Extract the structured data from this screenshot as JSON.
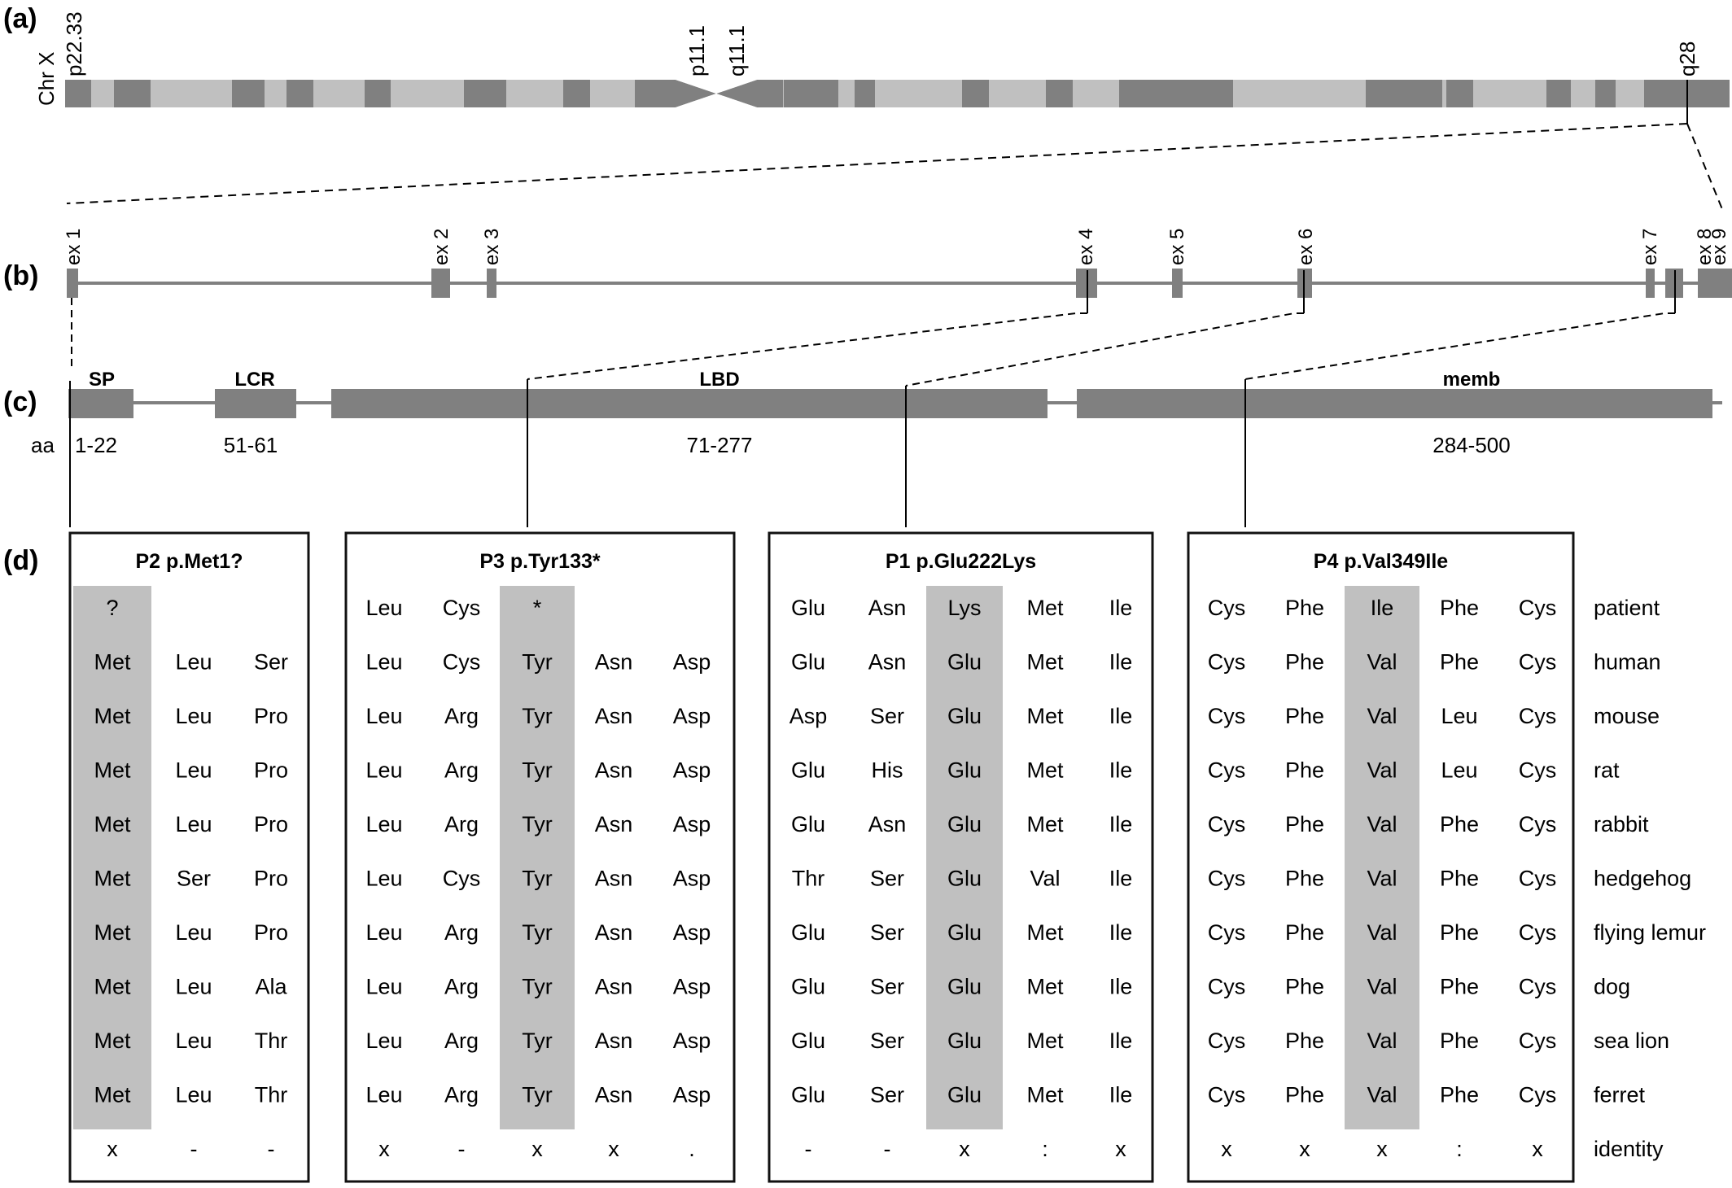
{
  "panels": {
    "a": "(a)",
    "b": "(b)",
    "c": "(c)",
    "d": "(d)"
  },
  "chromosome": {
    "label": "Chr X",
    "band_labels": {
      "p22_33": "p22.33",
      "p11_1": "p11.1",
      "q11_1": "q11.1",
      "q28": "q28"
    },
    "colors": {
      "dark": "#808080",
      "light": "#c0c0c0"
    }
  },
  "gene": {
    "exons": [
      "ex 1",
      "ex 2",
      "ex 3",
      "ex 4",
      "ex 5",
      "ex 6",
      "ex 7",
      "ex 8",
      "ex 9"
    ]
  },
  "protein": {
    "aa_label": "aa",
    "domains": [
      {
        "name": "SP",
        "range": "1-22"
      },
      {
        "name": "LCR",
        "range": "51-61"
      },
      {
        "name": "LBD",
        "range": "71-277"
      },
      {
        "name": "memb",
        "range": "284-500"
      }
    ]
  },
  "alignment": {
    "species": [
      "patient",
      "human",
      "mouse",
      "rat",
      "rabbit",
      "hedgehog",
      "flying lemur",
      "dog",
      "sea lion",
      "ferret",
      "identity"
    ],
    "highlight_color": "#c0c0c0",
    "boxes": [
      {
        "title": "P2 p.Met1?",
        "rows": [
          [
            "?",
            "",
            ""
          ],
          [
            "Met",
            "Leu",
            "Ser"
          ],
          [
            "Met",
            "Leu",
            "Pro"
          ],
          [
            "Met",
            "Leu",
            "Pro"
          ],
          [
            "Met",
            "Leu",
            "Pro"
          ],
          [
            "Met",
            "Ser",
            "Pro"
          ],
          [
            "Met",
            "Leu",
            "Pro"
          ],
          [
            "Met",
            "Leu",
            "Ala"
          ],
          [
            "Met",
            "Leu",
            "Thr"
          ],
          [
            "Met",
            "Leu",
            "Thr"
          ],
          [
            "x",
            "-",
            "-"
          ]
        ]
      },
      {
        "title": "P3 p.Tyr133*",
        "rows": [
          [
            "Leu",
            "Cys",
            "*",
            "",
            ""
          ],
          [
            "Leu",
            "Cys",
            "Tyr",
            "Asn",
            "Asp"
          ],
          [
            "Leu",
            "Arg",
            "Tyr",
            "Asn",
            "Asp"
          ],
          [
            "Leu",
            "Arg",
            "Tyr",
            "Asn",
            "Asp"
          ],
          [
            "Leu",
            "Arg",
            "Tyr",
            "Asn",
            "Asp"
          ],
          [
            "Leu",
            "Cys",
            "Tyr",
            "Asn",
            "Asp"
          ],
          [
            "Leu",
            "Arg",
            "Tyr",
            "Asn",
            "Asp"
          ],
          [
            "Leu",
            "Arg",
            "Tyr",
            "Asn",
            "Asp"
          ],
          [
            "Leu",
            "Arg",
            "Tyr",
            "Asn",
            "Asp"
          ],
          [
            "Leu",
            "Arg",
            "Tyr",
            "Asn",
            "Asp"
          ],
          [
            "x",
            "-",
            "x",
            "x",
            "."
          ]
        ]
      },
      {
        "title": "P1 p.Glu222Lys",
        "rows": [
          [
            "Glu",
            "Asn",
            "Lys",
            "Met",
            "Ile"
          ],
          [
            "Glu",
            "Asn",
            "Glu",
            "Met",
            "Ile"
          ],
          [
            "Asp",
            "Ser",
            "Glu",
            "Met",
            "Ile"
          ],
          [
            "Glu",
            "His",
            "Glu",
            "Met",
            "Ile"
          ],
          [
            "Glu",
            "Asn",
            "Glu",
            "Met",
            "Ile"
          ],
          [
            "Thr",
            "Ser",
            "Glu",
            "Val",
            "Ile"
          ],
          [
            "Glu",
            "Ser",
            "Glu",
            "Met",
            "Ile"
          ],
          [
            "Glu",
            "Ser",
            "Glu",
            "Met",
            "Ile"
          ],
          [
            "Glu",
            "Ser",
            "Glu",
            "Met",
            "Ile"
          ],
          [
            "Glu",
            "Ser",
            "Glu",
            "Met",
            "Ile"
          ],
          [
            "-",
            "-",
            "x",
            ":",
            "x"
          ]
        ]
      },
      {
        "title": "P4 p.Val349Ile",
        "rows": [
          [
            "Cys",
            "Phe",
            "Ile",
            "Phe",
            "Cys"
          ],
          [
            "Cys",
            "Phe",
            "Val",
            "Phe",
            "Cys"
          ],
          [
            "Cys",
            "Phe",
            "Val",
            "Leu",
            "Cys"
          ],
          [
            "Cys",
            "Phe",
            "Val",
            "Leu",
            "Cys"
          ],
          [
            "Cys",
            "Phe",
            "Val",
            "Phe",
            "Cys"
          ],
          [
            "Cys",
            "Phe",
            "Val",
            "Phe",
            "Cys"
          ],
          [
            "Cys",
            "Phe",
            "Val",
            "Phe",
            "Cys"
          ],
          [
            "Cys",
            "Phe",
            "Val",
            "Phe",
            "Cys"
          ],
          [
            "Cys",
            "Phe",
            "Val",
            "Phe",
            "Cys"
          ],
          [
            "Cys",
            "Phe",
            "Val",
            "Phe",
            "Cys"
          ],
          [
            "x",
            "x",
            "x",
            ":",
            "x"
          ]
        ]
      }
    ]
  }
}
